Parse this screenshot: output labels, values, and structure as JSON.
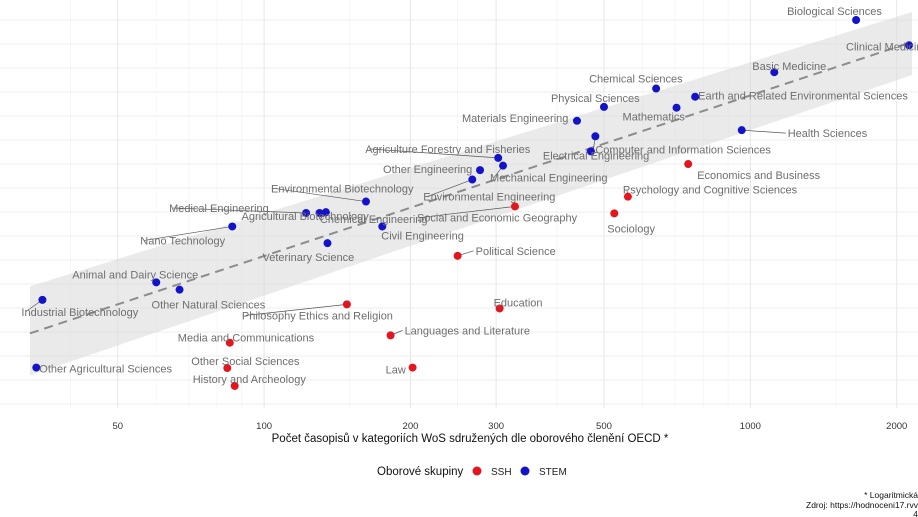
{
  "chart_data": {
    "type": "scatter",
    "xlabel": "Počet časopisů v kategoriích WoS sdružených dle oborového členění OECD *",
    "x_scale": "log",
    "xlim": [
      33,
      2150
    ],
    "x_ticks": [
      50,
      100,
      200,
      300,
      500,
      1000,
      2000
    ],
    "x_tick_labels": [
      "50",
      "100",
      "200",
      "300",
      "500",
      "1000",
      "2000"
    ],
    "ylim": [
      0,
      1
    ],
    "grid": true,
    "legend": {
      "title": "Oborové skupiny",
      "position": "bottom",
      "items": [
        {
          "key": "SSH",
          "label": "SSH",
          "color": "#e3151f"
        },
        {
          "key": "STEM",
          "label": "STEM",
          "color": "#1313c9"
        }
      ]
    },
    "trend": {
      "x": [
        33,
        2150
      ],
      "y": [
        0.183,
        0.897
      ]
    },
    "points": [
      {
        "label": "Biological Sciences",
        "group": "STEM",
        "x": 1650,
        "y": 0.951
      },
      {
        "label": "Clinical Medicine",
        "group": "STEM",
        "x": 2120,
        "y": 0.889
      },
      {
        "label": "Basic Medicine",
        "group": "STEM",
        "x": 1120,
        "y": 0.823
      },
      {
        "label": "Chemical Sciences",
        "group": "STEM",
        "x": 640,
        "y": 0.783
      },
      {
        "label": "Earth and Related Environmental Sciences",
        "group": "STEM",
        "x": 770,
        "y": 0.763
      },
      {
        "label": "Physical Sciences",
        "group": "STEM",
        "x": 500,
        "y": 0.738
      },
      {
        "label": "Mathematics",
        "group": "STEM",
        "x": 705,
        "y": 0.736
      },
      {
        "label": "Materials Engineering",
        "group": "STEM",
        "x": 440,
        "y": 0.704
      },
      {
        "label": "Health Sciences",
        "group": "STEM",
        "x": 960,
        "y": 0.681
      },
      {
        "label": "Computer and Information Sciences",
        "group": "STEM",
        "x": 480,
        "y": 0.666
      },
      {
        "label": "Electrical Engineering",
        "group": "STEM",
        "x": 470,
        "y": 0.629
      },
      {
        "label": "Agriculture Forestry and Fisheries",
        "group": "STEM",
        "x": 303,
        "y": 0.613
      },
      {
        "label": "Mechanical Engineering",
        "group": "STEM",
        "x": 310,
        "y": 0.594
      },
      {
        "label": "Other Engineering",
        "group": "STEM",
        "x": 278,
        "y": 0.583
      },
      {
        "label": "Environmental Engineering",
        "group": "STEM",
        "x": 268,
        "y": 0.56
      },
      {
        "label": "Economics and Business",
        "group": "SSH",
        "x": 745,
        "y": 0.598
      },
      {
        "label": "Psychology and Cognitive Sciences",
        "group": "SSH",
        "x": 560,
        "y": 0.518
      },
      {
        "label": "Sociology",
        "group": "SSH",
        "x": 525,
        "y": 0.477
      },
      {
        "label": "Social and Economic Geography",
        "group": "SSH",
        "x": 328,
        "y": 0.494
      },
      {
        "label": "Environmental Biotechnology",
        "group": "STEM",
        "x": 162,
        "y": 0.506
      },
      {
        "label": "Medical Engineering",
        "group": "STEM",
        "x": 122,
        "y": 0.478
      },
      {
        "label": "Chemical Engineering",
        "group": "STEM",
        "x": 134,
        "y": 0.48
      },
      {
        "label": "Agricultural Biotechnology",
        "group": "STEM",
        "x": 130,
        "y": 0.478
      },
      {
        "label": "Civil Engineering",
        "group": "STEM",
        "x": 175,
        "y": 0.445
      },
      {
        "label": "Nano Technology",
        "group": "STEM",
        "x": 86,
        "y": 0.445
      },
      {
        "label": "Veterinary Science",
        "group": "STEM",
        "x": 135,
        "y": 0.404
      },
      {
        "label": "Political Science",
        "group": "SSH",
        "x": 250,
        "y": 0.373
      },
      {
        "label": "Animal and Dairy Science",
        "group": "STEM",
        "x": 60,
        "y": 0.308
      },
      {
        "label": "Other Natural Sciences",
        "group": "STEM",
        "x": 67,
        "y": 0.29
      },
      {
        "label": "Industrial Biotechnology",
        "group": "STEM",
        "x": 35,
        "y": 0.265
      },
      {
        "label": "Philosophy Ethics and Religion",
        "group": "SSH",
        "x": 148,
        "y": 0.254
      },
      {
        "label": "Education",
        "group": "SSH",
        "x": 305,
        "y": 0.244
      },
      {
        "label": "Languages and Literature",
        "group": "SSH",
        "x": 182,
        "y": 0.178
      },
      {
        "label": "Media and Communications",
        "group": "SSH",
        "x": 85,
        "y": 0.16
      },
      {
        "label": "Other Agricultural Sciences",
        "group": "STEM",
        "x": 34,
        "y": 0.099
      },
      {
        "label": "Other Social Sciences",
        "group": "SSH",
        "x": 84,
        "y": 0.098
      },
      {
        "label": "Law",
        "group": "SSH",
        "x": 202,
        "y": 0.099
      },
      {
        "label": "History and Archeology",
        "group": "SSH",
        "x": 87,
        "y": 0.054
      }
    ]
  },
  "footnote": {
    "line1": "* Logaritmická",
    "line2": "Zdroj: https://hodnoceni17.rvv",
    "line3": "4"
  }
}
